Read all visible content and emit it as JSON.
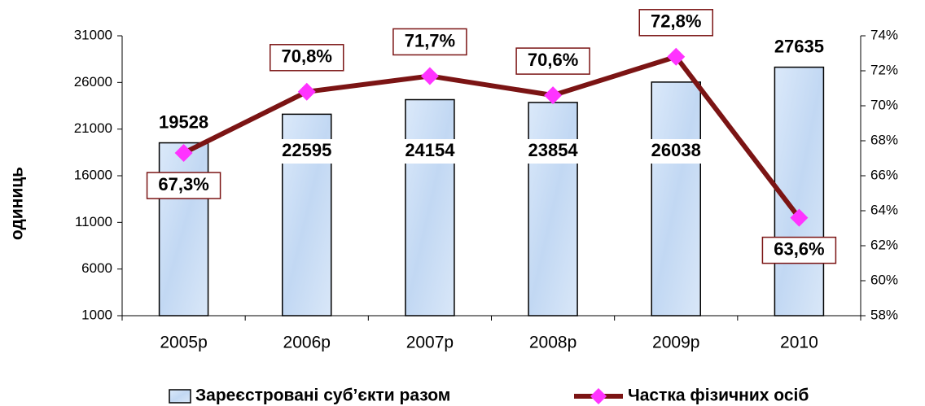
{
  "chart_data": {
    "type": "bar",
    "categories": [
      "2005р",
      "2006р",
      "2007р",
      "2008р",
      "2009р",
      "2010"
    ],
    "y_label": "одиниць",
    "ylim": [
      1000,
      31000
    ],
    "yticks": [
      1000,
      6000,
      11000,
      16000,
      21000,
      26000,
      31000
    ],
    "y2lim": [
      58,
      74
    ],
    "y2ticks": [
      {
        "value": 58,
        "label": "58%"
      },
      {
        "value": 60,
        "label": "60%"
      },
      {
        "value": 62,
        "label": "62%"
      },
      {
        "value": 64,
        "label": "64%"
      },
      {
        "value": 66,
        "label": "66%"
      },
      {
        "value": 68,
        "label": "68%"
      },
      {
        "value": 70,
        "label": "70%"
      },
      {
        "value": 72,
        "label": "72%"
      },
      {
        "value": 74,
        "label": "74%"
      }
    ],
    "series": [
      {
        "name": "Зареєстровані суб’єкти разом",
        "type": "bar",
        "color": "#c5dcf5",
        "values": [
          19528,
          22595,
          24154,
          23854,
          26038,
          27635
        ]
      },
      {
        "name": "Частка фізичних осіб",
        "type": "line",
        "axis": "y2",
        "color": "#7b1414",
        "marker_color": "#ff33ff",
        "values": [
          67.3,
          70.8,
          71.7,
          70.6,
          72.8,
          63.6
        ],
        "value_labels": [
          "67,3%",
          "70,8%",
          "71,7%",
          "70,6%",
          "72,8%",
          "63,6%"
        ]
      }
    ],
    "legend": "bottom"
  }
}
